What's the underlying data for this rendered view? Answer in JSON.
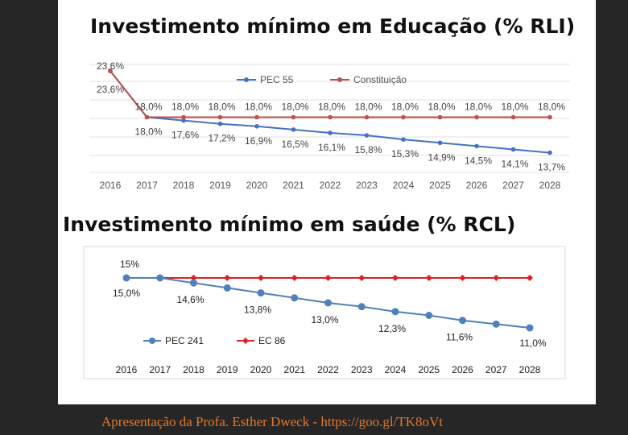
{
  "credit": "Apresentação da Profa. Esther Dweck - https://goo.gl/TK8oVt",
  "chart_data": [
    {
      "type": "line",
      "title": "Investimento mínimo em Educação (% RLI)",
      "categories": [
        "2016",
        "2017",
        "2018",
        "2019",
        "2020",
        "2021",
        "2022",
        "2023",
        "2024",
        "2025",
        "2026",
        "2027",
        "2028"
      ],
      "series": [
        {
          "name": "PEC 55",
          "color": "#4472c4",
          "values": [
            23.6,
            18.0,
            17.6,
            17.2,
            16.9,
            16.5,
            16.1,
            15.8,
            15.3,
            14.9,
            14.5,
            14.1,
            13.7
          ],
          "labels": [
            "23,6%",
            "18,0%",
            "17,6%",
            "17,2%",
            "16,9%",
            "16,5%",
            "16,1%",
            "15,8%",
            "15,3%",
            "14,9%",
            "14,5%",
            "14,1%",
            "13,7%"
          ]
        },
        {
          "name": "Constituição",
          "color": "#c0504d",
          "values": [
            23.6,
            18.0,
            18.0,
            18.0,
            18.0,
            18.0,
            18.0,
            18.0,
            18.0,
            18.0,
            18.0,
            18.0,
            18.0
          ],
          "labels": [
            "23,6%",
            "18,0%",
            "18,0%",
            "18,0%",
            "18,0%",
            "18,0%",
            "18,0%",
            "18,0%",
            "18,0%",
            "18,0%",
            "18,0%",
            "18,0%",
            "18,0%"
          ]
        }
      ],
      "ylim": [
        12,
        25
      ],
      "grid": true,
      "legend": "top"
    },
    {
      "type": "line",
      "title": "Investimento mínimo em saúde (% RCL)",
      "categories": [
        "2016",
        "2017",
        "2018",
        "2019",
        "2020",
        "2021",
        "2022",
        "2023",
        "2024",
        "2025",
        "2026",
        "2027",
        "2028"
      ],
      "series": [
        {
          "name": "PEC 241",
          "color": "#4f81bd",
          "values": [
            15.0,
            15.0,
            14.6,
            14.2,
            13.8,
            13.4,
            13.0,
            12.7,
            12.3,
            12.0,
            11.6,
            11.3,
            11.0
          ],
          "labels": [
            "15,0%",
            "",
            "14,6%",
            "",
            "13,8%",
            "",
            "13,0%",
            "",
            "12,3%",
            "",
            "11,6%",
            "",
            "11,0%"
          ]
        },
        {
          "name": "EC 86",
          "color": "#e02020",
          "values": [
            15.0,
            15.0,
            15.0,
            15.0,
            15.0,
            15.0,
            15.0,
            15.0,
            15.0,
            15.0,
            15.0,
            15.0,
            15.0
          ],
          "labels": [
            "15%",
            "",
            "",
            "",
            "",
            "",
            "",
            "",
            "",
            "",
            "",
            "",
            ""
          ]
        }
      ],
      "ylim": [
        10.5,
        15.8
      ],
      "grid": false,
      "legend": "bottom-left"
    }
  ]
}
